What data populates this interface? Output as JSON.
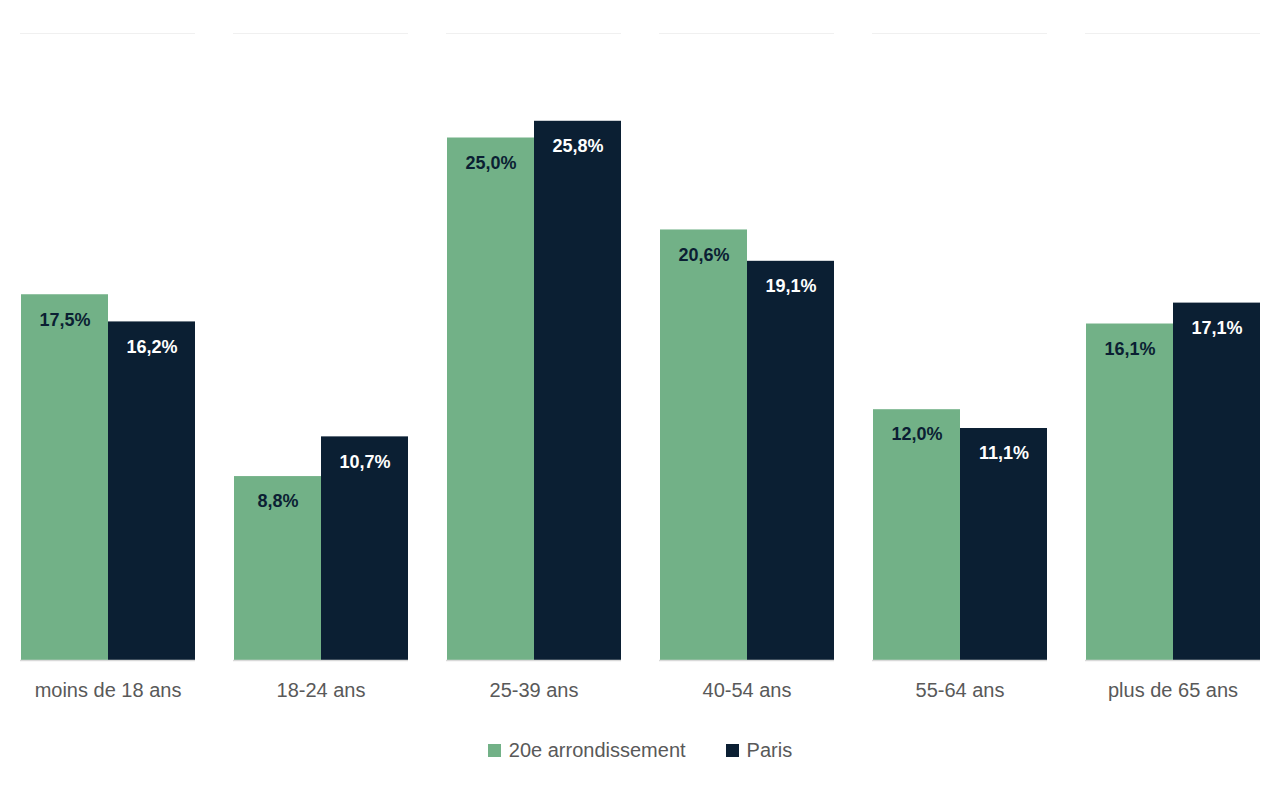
{
  "chart_data": {
    "type": "bar",
    "categories": [
      "moins de 18 ans",
      "18-24 ans",
      "25-39 ans",
      "40-54 ans",
      "55-64 ans",
      "plus de 65 ans"
    ],
    "series": [
      {
        "name": "20e arrondissement",
        "color": "#72b187",
        "values": [
          17.5,
          8.8,
          25.0,
          20.6,
          12.0,
          16.1
        ],
        "value_labels": [
          "17,5%",
          "8,8%",
          "25,0%",
          "20,6%",
          "12,0%",
          "16,1%"
        ]
      },
      {
        "name": "Paris",
        "color": "#0b1f33",
        "values": [
          16.2,
          10.7,
          25.8,
          19.1,
          11.1,
          17.1
        ],
        "value_labels": [
          "16,2%",
          "10,7%",
          "25,8%",
          "19,1%",
          "11,1%",
          "17,1%"
        ]
      }
    ],
    "ylim": [
      0,
      30
    ],
    "yticks": [],
    "grid": false,
    "data_labels": true,
    "tick_labels": "x",
    "legend": "bottom"
  }
}
